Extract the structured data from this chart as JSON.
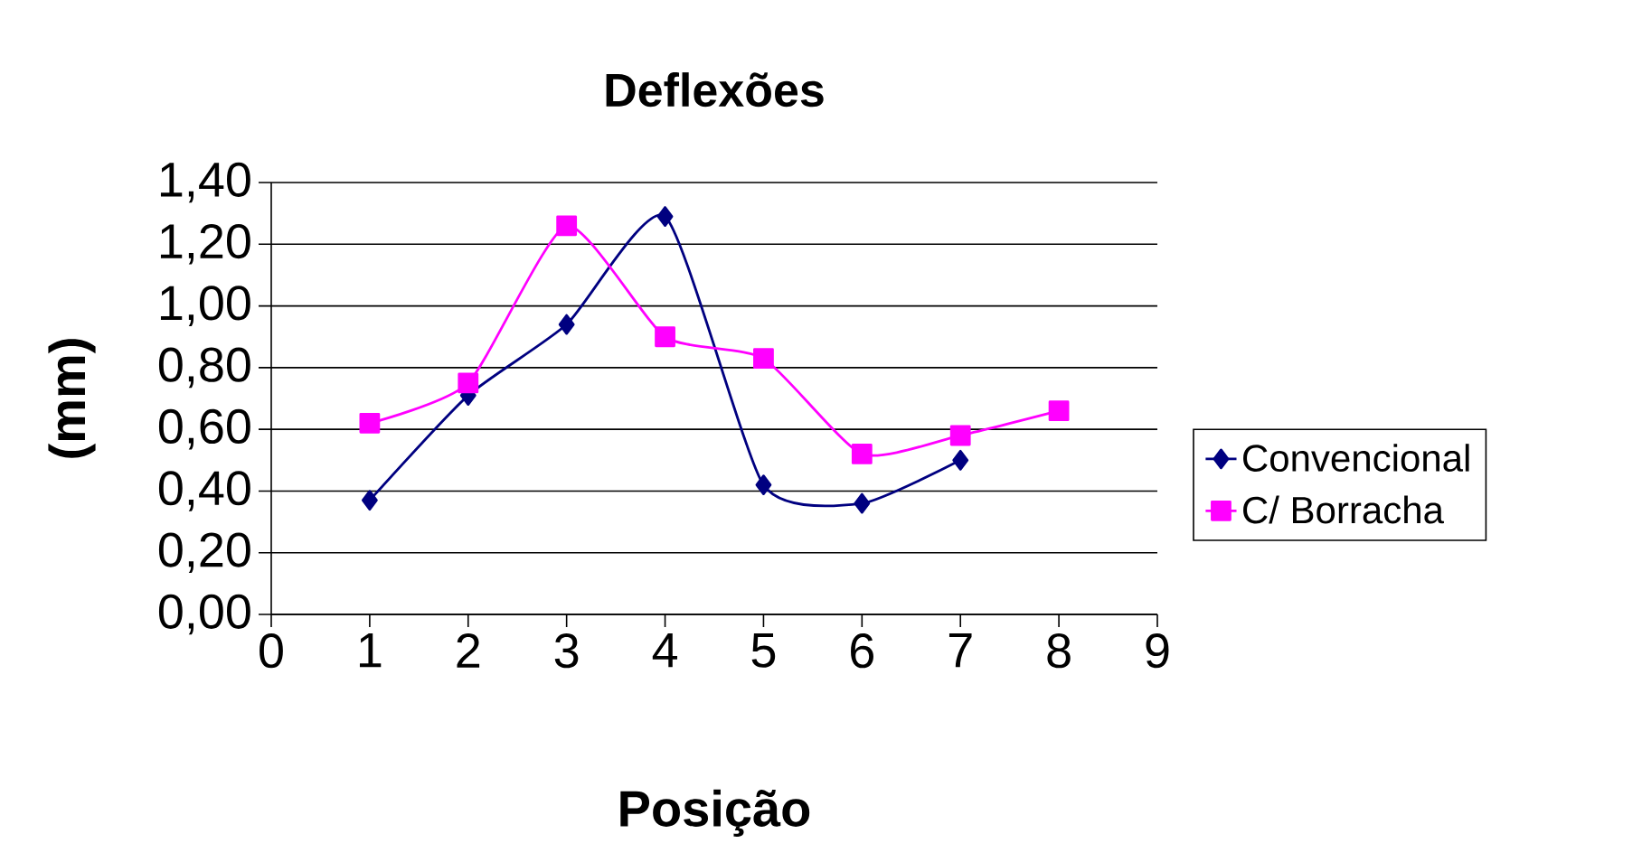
{
  "chart_data": {
    "type": "line",
    "title": "Deflexões",
    "xlabel": "Posição",
    "ylabel": "(mm)",
    "x": [
      1,
      2,
      3,
      4,
      5,
      6,
      7,
      8
    ],
    "series": [
      {
        "name": "Convencional",
        "color": "#000080",
        "marker": "diamond",
        "values": [
          0.37,
          0.71,
          0.94,
          1.29,
          0.42,
          0.36,
          0.5,
          null
        ]
      },
      {
        "name": "C/ Borracha",
        "color": "#ff00ff",
        "marker": "square",
        "values": [
          0.62,
          0.75,
          1.26,
          0.9,
          0.83,
          0.52,
          0.58,
          0.66
        ]
      }
    ],
    "xlim": [
      0,
      9
    ],
    "xticks": [
      0,
      1,
      2,
      3,
      4,
      5,
      6,
      7,
      8,
      9
    ],
    "ylim": [
      0,
      1.4
    ],
    "yticks": [
      {
        "value": 0,
        "label": "0,00"
      },
      {
        "value": 0.2,
        "label": "0,20"
      },
      {
        "value": 0.4,
        "label": "0,40"
      },
      {
        "value": 0.6,
        "label": "0,60"
      },
      {
        "value": 0.8,
        "label": "0,80"
      },
      {
        "value": 1.0,
        "label": "1,00"
      },
      {
        "value": 1.2,
        "label": "1,20"
      },
      {
        "value": 1.4,
        "label": "1,40"
      }
    ],
    "grid": "y",
    "legend": "right"
  }
}
